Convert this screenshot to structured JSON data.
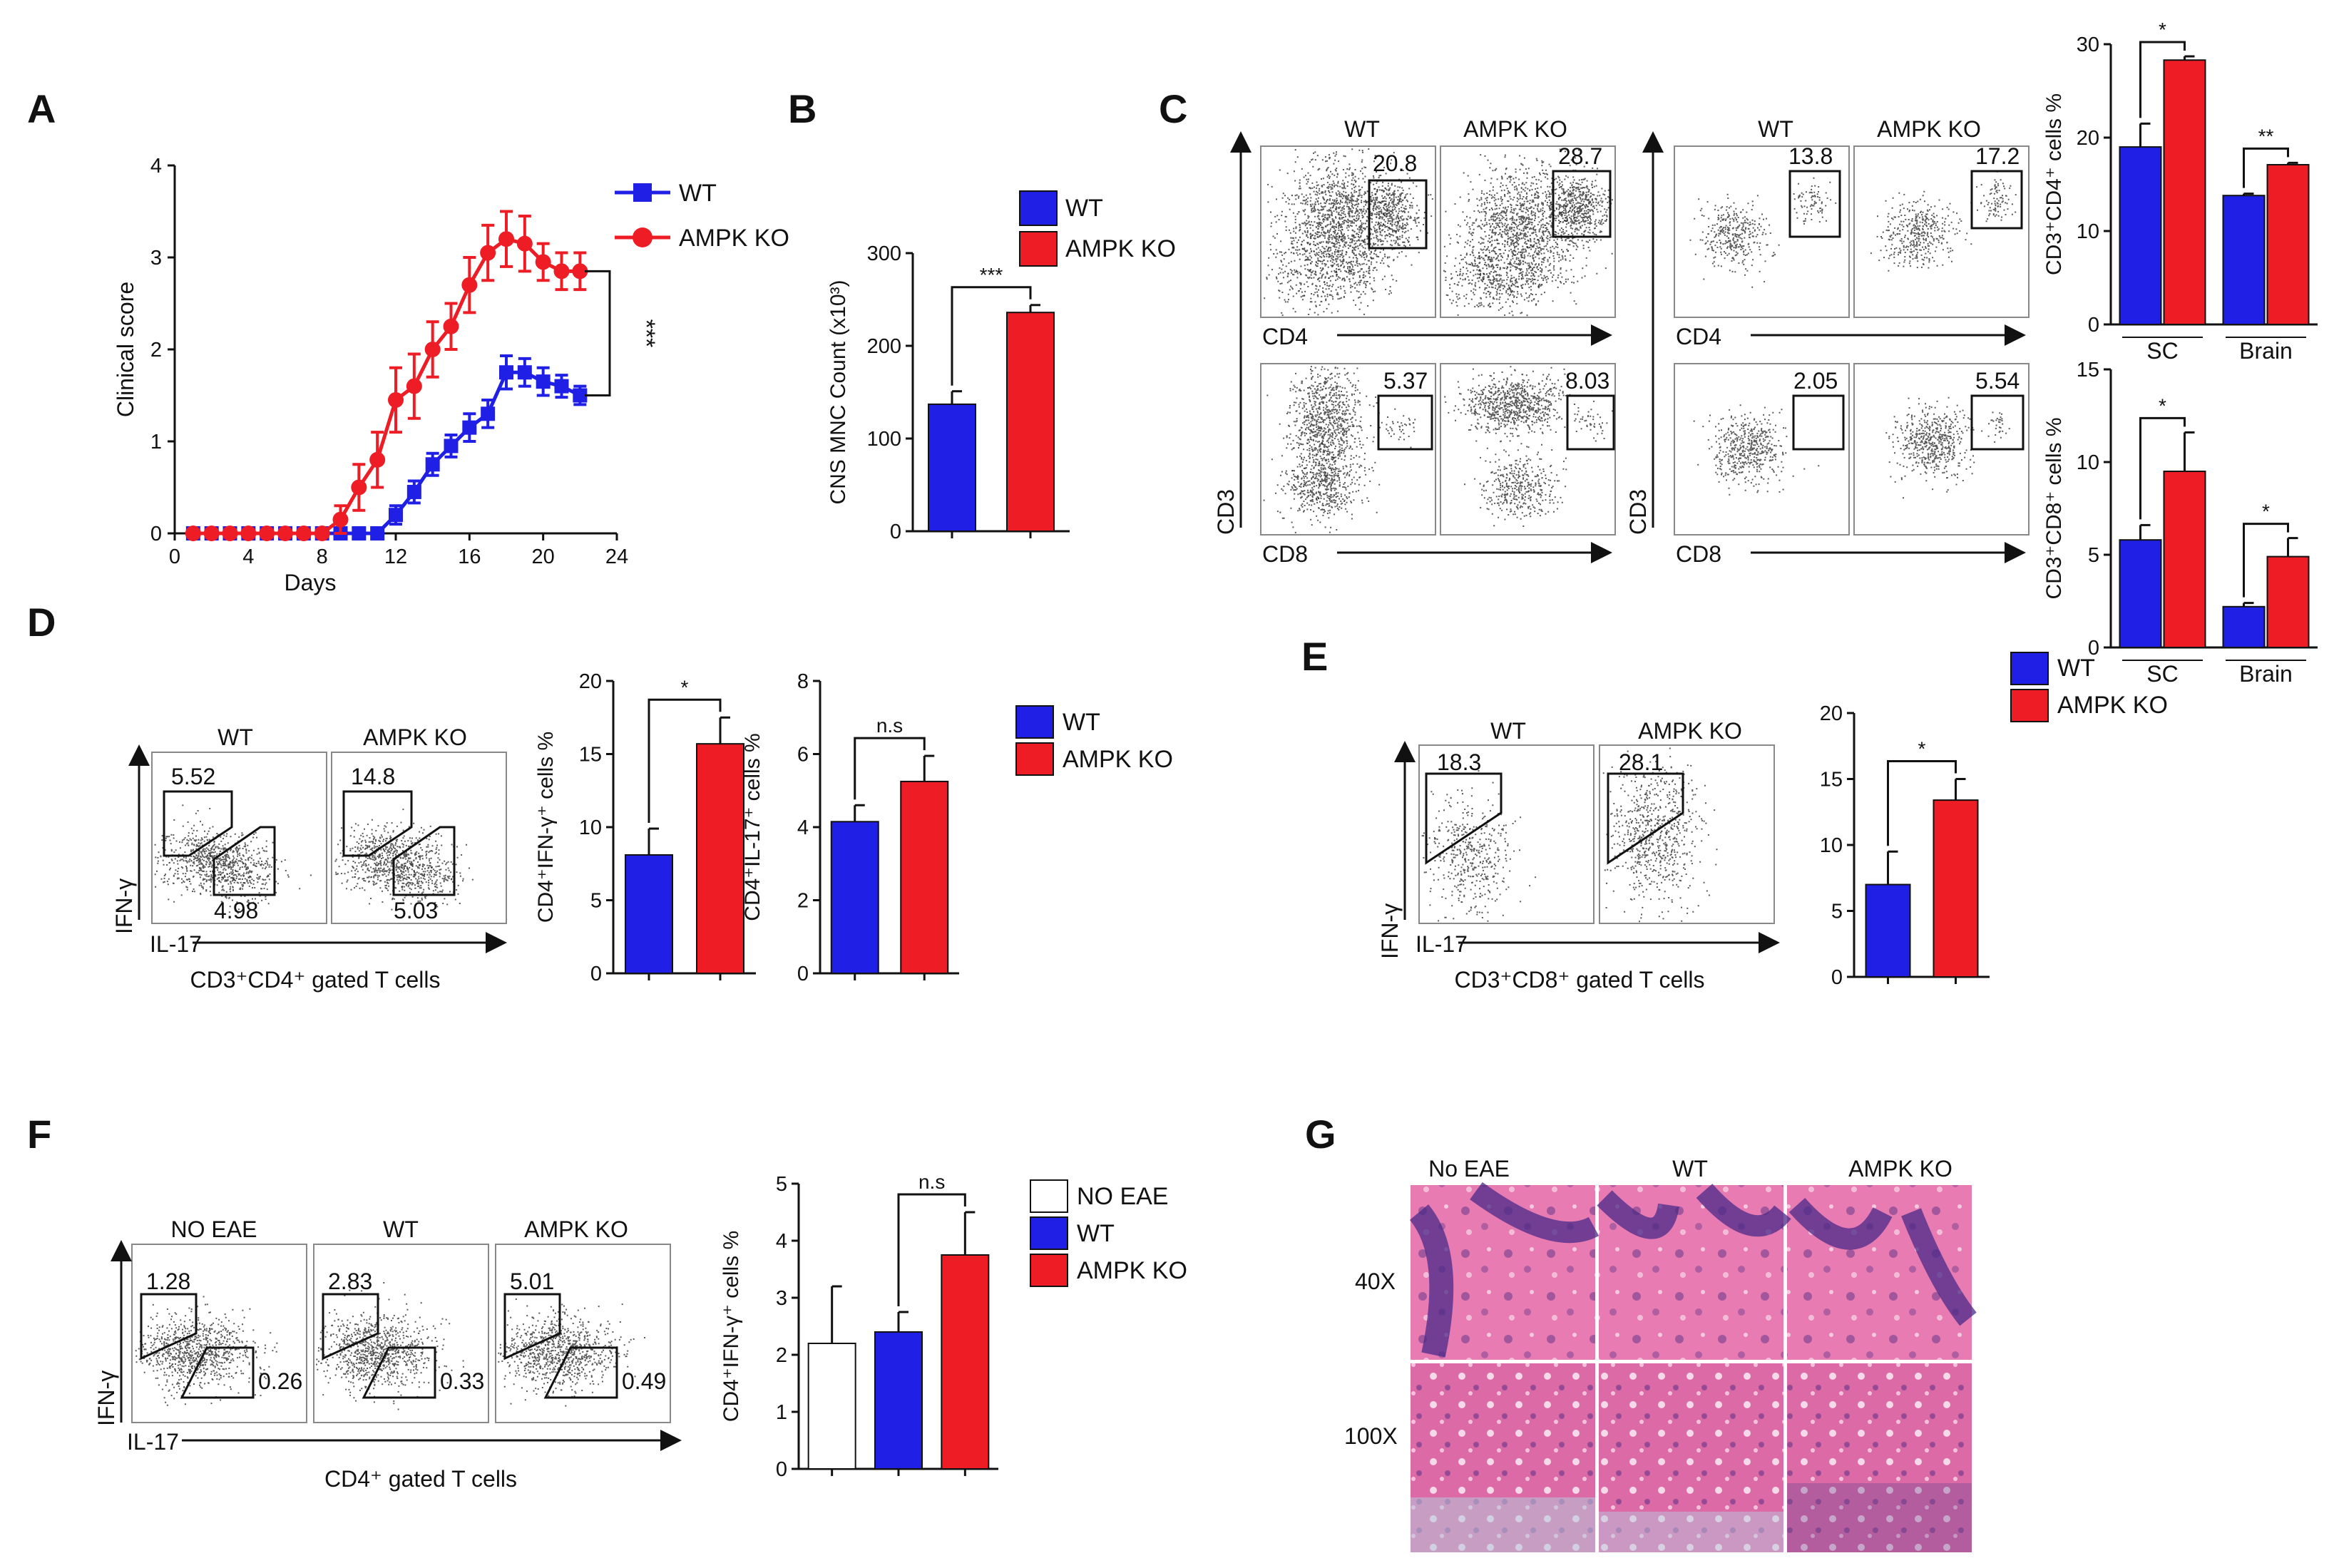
{
  "colors": {
    "wt": "#1f1fe6",
    "ko": "#ee1c24",
    "noeae": "#ffffff",
    "ink": "#111111"
  },
  "panels": {
    "A": "A",
    "B": "B",
    "C": "C",
    "D": "D",
    "E": "E",
    "F": "F",
    "G": "G"
  },
  "legend": {
    "wt": "WT",
    "ko": "AMPK KO",
    "noeae": "NO EAE"
  },
  "facs": {
    "C": {
      "cols": [
        "WT",
        "AMPK KO",
        "WT",
        "AMPK KO"
      ],
      "x_top": "CD4",
      "x_bottom": "CD8",
      "y_left": "CD3",
      "y_right": "CD3",
      "values_top": [
        "20.8",
        "28.7",
        "13.8",
        "17.2"
      ],
      "values_bottom": [
        "5.37",
        "8.03",
        "2.05",
        "5.54"
      ]
    },
    "D": {
      "cols": [
        "WT",
        "AMPK KO"
      ],
      "y": "IFN-γ",
      "x": "IL-17",
      "caption": "CD3⁺CD4⁺ gated T cells",
      "upper": [
        "5.52",
        "14.8"
      ],
      "lower": [
        "4.98",
        "5.03"
      ]
    },
    "E": {
      "cols": [
        "WT",
        "AMPK KO"
      ],
      "y": "IFN-γ",
      "x": "IL-17",
      "caption": "CD3⁺CD8⁺ gated T cells",
      "upper": [
        "18.3",
        "28.1"
      ]
    },
    "F": {
      "cols": [
        "NO EAE",
        "WT",
        "AMPK KO"
      ],
      "y": "IFN-γ",
      "x": "IL-17",
      "caption": "CD4⁺ gated T cells",
      "upper": [
        "1.28",
        "2.83",
        "5.01"
      ],
      "lower": [
        "0.26",
        "0.33",
        "0.49"
      ]
    }
  },
  "histology": {
    "cols": [
      "No EAE",
      "WT",
      "AMPK KO"
    ],
    "rows": [
      "40X",
      "100X"
    ]
  },
  "chart_data": [
    {
      "id": "A",
      "type": "line",
      "xlabel": "Days",
      "ylabel": "Clinical score",
      "xlim": [
        0,
        24
      ],
      "ylim": [
        0,
        4
      ],
      "xticks": [
        "0",
        "4",
        "8",
        "12",
        "16",
        "20",
        "24"
      ],
      "yticks": [
        "0",
        "1",
        "2",
        "3",
        "4"
      ],
      "significance": "***",
      "series": [
        {
          "name": "WT",
          "x": [
            1,
            2,
            3,
            4,
            5,
            6,
            7,
            8,
            9,
            10,
            11,
            12,
            13,
            14,
            15,
            16,
            17,
            18,
            19,
            20,
            21,
            22
          ],
          "y": [
            0,
            0,
            0,
            0,
            0,
            0,
            0,
            0,
            0,
            0,
            0,
            0.2,
            0.45,
            0.75,
            0.95,
            1.15,
            1.3,
            1.75,
            1.75,
            1.65,
            1.6,
            1.5
          ],
          "err": [
            0,
            0,
            0,
            0,
            0,
            0,
            0,
            0,
            0,
            0,
            0,
            0.1,
            0.12,
            0.12,
            0.12,
            0.15,
            0.15,
            0.18,
            0.15,
            0.15,
            0.12,
            0.1
          ]
        },
        {
          "name": "AMPK KO",
          "x": [
            1,
            2,
            3,
            4,
            5,
            6,
            7,
            8,
            9,
            10,
            11,
            12,
            13,
            14,
            15,
            16,
            17,
            18,
            19,
            20,
            21,
            22
          ],
          "y": [
            0,
            0,
            0,
            0,
            0,
            0,
            0,
            0,
            0.15,
            0.5,
            0.8,
            1.45,
            1.6,
            2.0,
            2.25,
            2.7,
            3.05,
            3.2,
            3.15,
            2.95,
            2.85,
            2.85
          ],
          "err": [
            0,
            0,
            0,
            0,
            0,
            0,
            0,
            0,
            0.15,
            0.25,
            0.3,
            0.35,
            0.35,
            0.3,
            0.25,
            0.3,
            0.3,
            0.3,
            0.3,
            0.2,
            0.2,
            0.2
          ]
        }
      ]
    },
    {
      "id": "B",
      "type": "bar",
      "ylabel": "CNS MNC Count (x10³)",
      "ylim": [
        0,
        300
      ],
      "yticks": [
        "0",
        "100",
        "200",
        "300"
      ],
      "categories": [
        "WT",
        "AMPK KO"
      ],
      "values": [
        137,
        236
      ],
      "err": [
        14,
        8
      ],
      "significance": "***"
    },
    {
      "id": "C1",
      "type": "bar",
      "ylabel": "CD3⁺CD4⁺ cells %",
      "ylim": [
        0,
        30
      ],
      "yticks": [
        "0",
        "10",
        "20",
        "30"
      ],
      "groups": [
        "SC",
        "Brain"
      ],
      "series": [
        {
          "name": "WT",
          "values": [
            19,
            13.8
          ],
          "err": [
            2.5,
            0.2
          ]
        },
        {
          "name": "AMPK KO",
          "values": [
            28.3,
            17.1
          ],
          "err": [
            0.4,
            0.2
          ]
        }
      ],
      "significance": [
        "*",
        "**"
      ]
    },
    {
      "id": "C2",
      "type": "bar",
      "ylabel": "CD3⁺CD8⁺ cells %",
      "ylim": [
        0,
        15
      ],
      "yticks": [
        "0",
        "5",
        "10",
        "15"
      ],
      "groups": [
        "SC",
        "Brain"
      ],
      "series": [
        {
          "name": "WT",
          "values": [
            5.8,
            2.2
          ],
          "err": [
            0.8,
            0.2
          ]
        },
        {
          "name": "AMPK KO",
          "values": [
            9.5,
            4.9
          ],
          "err": [
            2.1,
            1.0
          ]
        }
      ],
      "significance": [
        "*",
        "*"
      ]
    },
    {
      "id": "D1",
      "type": "bar",
      "ylabel": "CD4⁺IFN-γ⁺ cells %",
      "ylim": [
        0,
        20
      ],
      "yticks": [
        "0",
        "5",
        "10",
        "15",
        "20"
      ],
      "categories": [
        "WT",
        "AMPK KO"
      ],
      "values": [
        8.1,
        15.7
      ],
      "err": [
        1.8,
        1.8
      ],
      "significance": "*"
    },
    {
      "id": "D2",
      "type": "bar",
      "ylabel": "CD4⁺IL-17⁺ cells %",
      "ylim": [
        0,
        8
      ],
      "yticks": [
        "0",
        "2",
        "4",
        "6",
        "8"
      ],
      "categories": [
        "WT",
        "AMPK KO"
      ],
      "values": [
        4.15,
        5.25
      ],
      "err": [
        0.45,
        0.7
      ],
      "significance": "n.s"
    },
    {
      "id": "E1",
      "type": "bar",
      "ylabel": "",
      "ylim": [
        0,
        20
      ],
      "yticks": [
        "0",
        "5",
        "10",
        "15",
        "20"
      ],
      "categories": [
        "WT",
        "AMPK KO"
      ],
      "values": [
        7.0,
        13.4
      ],
      "err": [
        2.5,
        1.6
      ],
      "significance": "*"
    },
    {
      "id": "F1",
      "type": "bar",
      "ylabel": "CD4⁺IFN-γ⁺ cells %",
      "ylim": [
        0,
        5
      ],
      "yticks": [
        "0",
        "1",
        "2",
        "3",
        "4",
        "5"
      ],
      "categories": [
        "NO EAE",
        "WT",
        "AMPK KO"
      ],
      "values": [
        2.2,
        2.4,
        3.75
      ],
      "err": [
        1.0,
        0.35,
        0.75
      ],
      "significance": "n.s"
    }
  ]
}
